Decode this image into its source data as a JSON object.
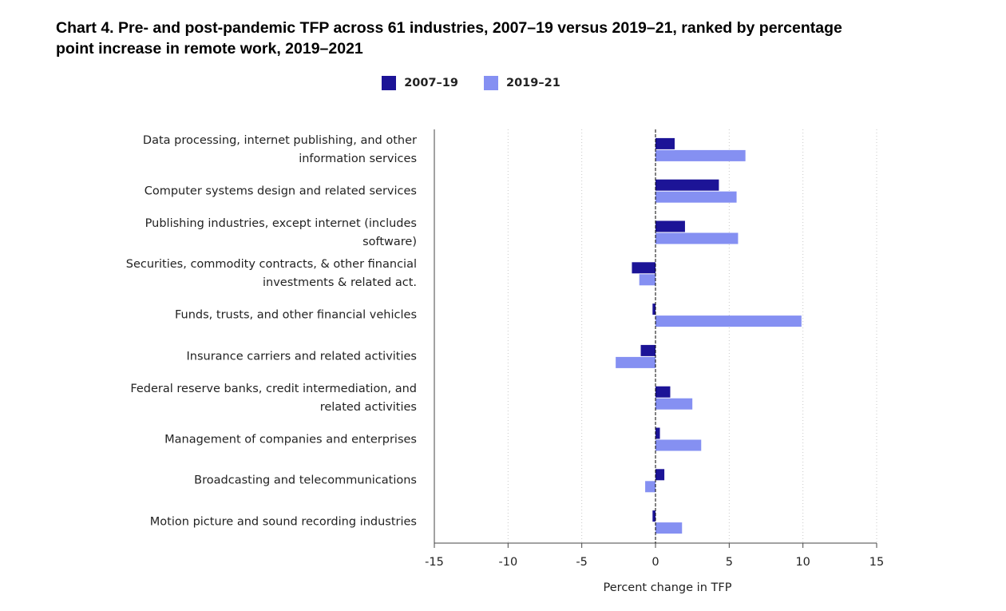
{
  "chart_data": {
    "type": "hbar",
    "title": "Chart 4. Pre- and post-pandemic TFP across 61 industries, 2007–19 versus 2019–21, ranked by percentage point increase in remote work, 2019–2021",
    "x_label": "Percent change in TFP",
    "categories": [
      "Data processing, internet publishing, and other information services",
      "Computer systems design and related services",
      "Publishing industries, except internet (includes software)",
      "Securities, commodity contracts, & other financial investments & related act.",
      "Funds, trusts, and other financial vehicles",
      "Insurance carriers and related activities",
      "Federal reserve banks, credit intermediation, and related activities",
      "Management of companies and enterprises",
      "Broadcasting and telecommunications",
      "Motion picture and sound recording industries"
    ],
    "series": [
      {
        "name": "2007–19",
        "color": "#1c1497",
        "values": [
          1.3,
          4.3,
          2.0,
          -1.6,
          -0.2,
          -1.0,
          1.0,
          0.3,
          0.6,
          -0.2
        ]
      },
      {
        "name": "2019–21",
        "color": "#8590f2",
        "values": [
          6.1,
          5.5,
          5.6,
          -1.1,
          9.9,
          -2.7,
          2.5,
          3.1,
          -0.7,
          1.8
        ]
      }
    ],
    "xlim": [
      -15,
      15
    ],
    "xticks": [
      -15,
      -10,
      -5,
      0,
      5,
      10,
      15
    ],
    "grid": true
  }
}
